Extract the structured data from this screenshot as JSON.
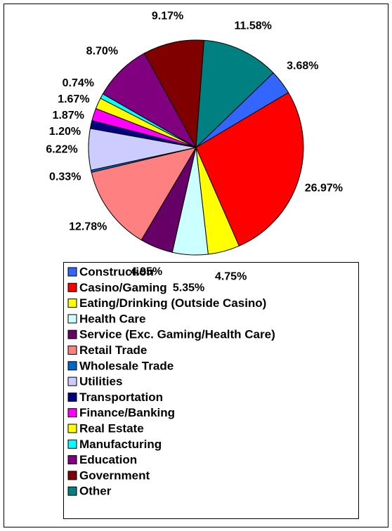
{
  "chart_data": {
    "type": "pie",
    "categories": [
      "Construction",
      "Casino/Gaming",
      "Eating/Drinking (Outside Casino)",
      "Health Care",
      "Service (Exc. Gaming/Health Care)",
      "Retail Trade",
      "Wholesale Trade",
      "Utilities",
      "Transportation",
      "Finance/Banking",
      "Real Estate",
      "Manufacturing",
      "Education",
      "Government",
      "Other"
    ],
    "values": [
      3.68,
      26.97,
      4.75,
      5.35,
      4.95,
      12.78,
      0.33,
      6.22,
      1.2,
      1.87,
      1.67,
      0.74,
      8.7,
      9.17,
      11.58
    ],
    "value_labels": [
      "3.68%",
      "26.97%",
      "4.75%",
      "5.35%",
      "4.95%",
      "12.78%",
      "0.33%",
      "6.22%",
      "1.20%",
      "1.87%",
      "1.67%",
      "0.74%",
      "8.70%",
      "9.17%",
      "11.58%"
    ],
    "colors": [
      "#3366ff",
      "#ff0000",
      "#ffff00",
      "#ccffff",
      "#660066",
      "#ff8080",
      "#0066cc",
      "#ccccff",
      "#000080",
      "#ff00ff",
      "#ffff00",
      "#00ffff",
      "#800080",
      "#800000",
      "#008080"
    ],
    "legend": "bottom"
  }
}
